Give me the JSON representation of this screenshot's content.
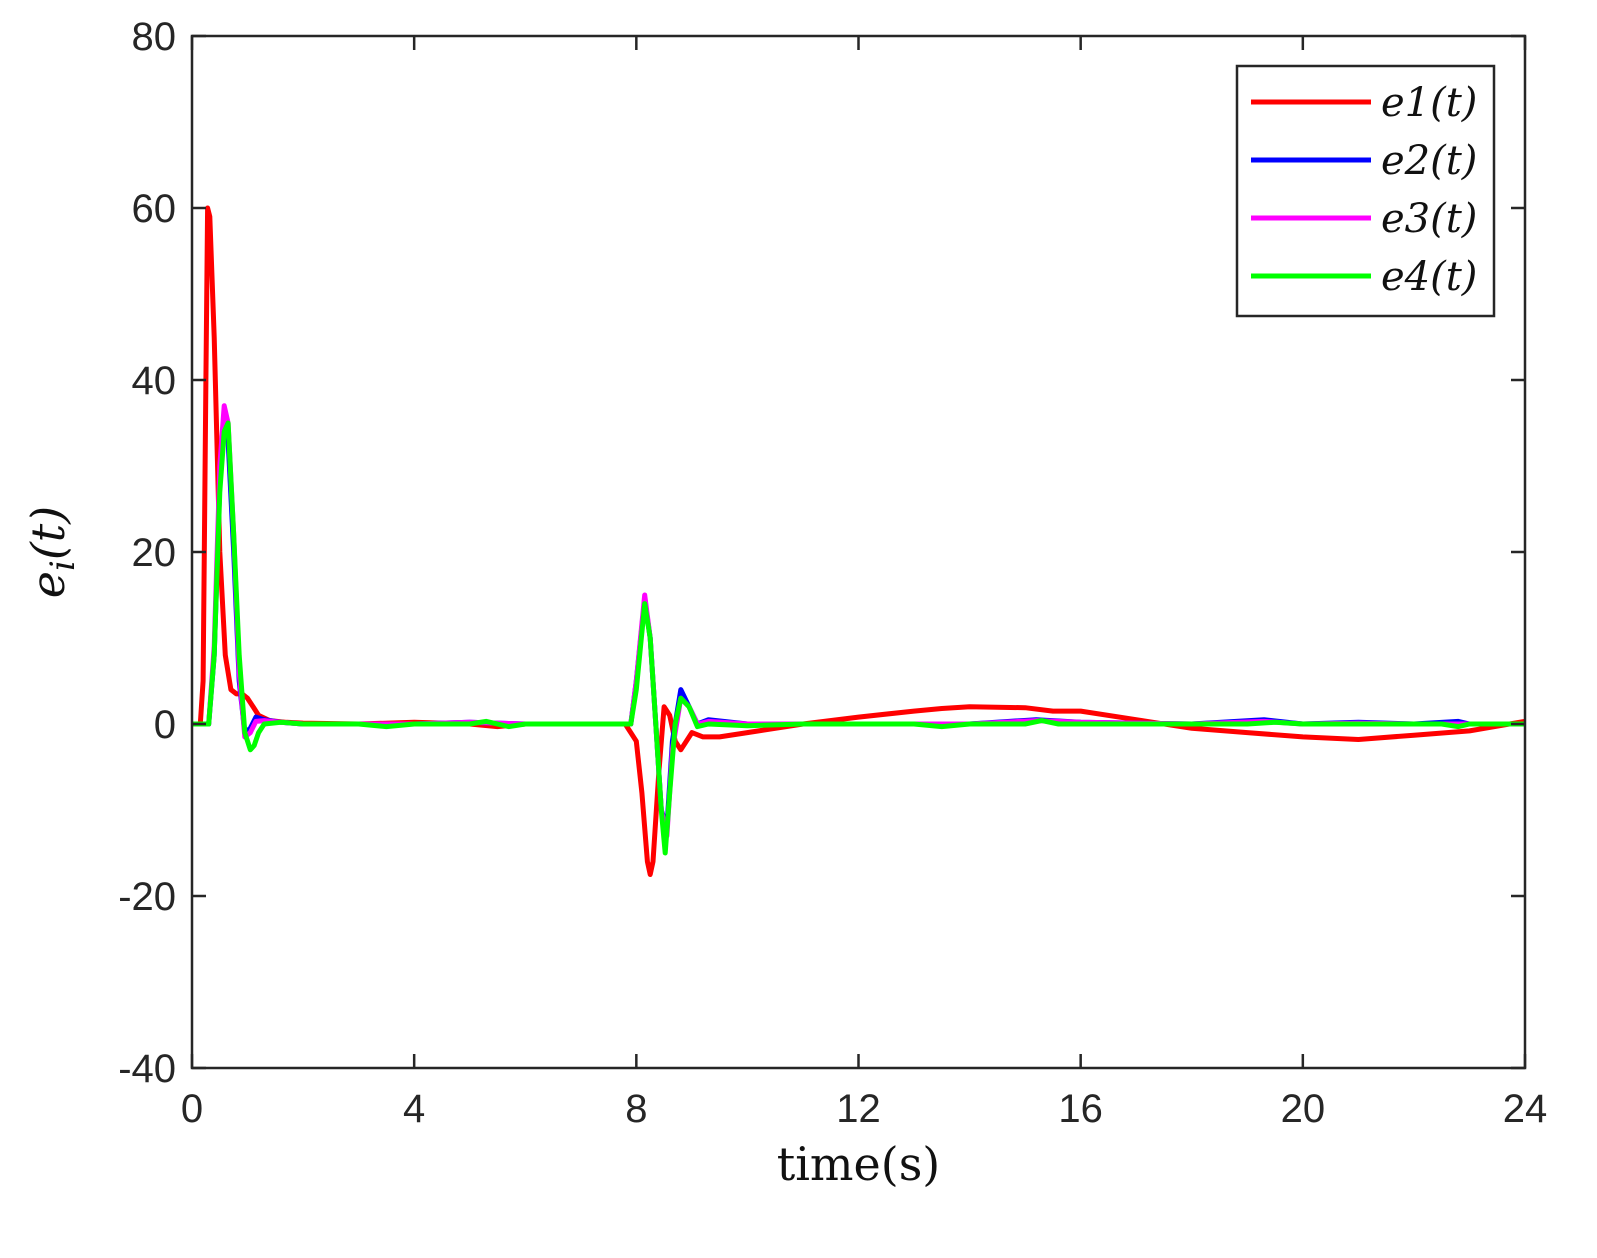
{
  "chart_data": {
    "type": "line",
    "xlabel": "time(s)",
    "ylabel": "e_i(t)",
    "ylabel_parts": {
      "base": "e",
      "sub": "i",
      "arg": "(t)"
    },
    "xlim": [
      0,
      24
    ],
    "ylim": [
      -40,
      80
    ],
    "xticks": [
      0,
      4,
      8,
      12,
      16,
      20,
      24
    ],
    "yticks": [
      -40,
      -20,
      0,
      20,
      40,
      60,
      80
    ],
    "xtick_labels": [
      "0",
      "4",
      "8",
      "12",
      "16",
      "20",
      "24"
    ],
    "ytick_labels": [
      "-40",
      "-20",
      "0",
      "20",
      "40",
      "60",
      "80"
    ],
    "grid": false,
    "legend_position": "top-right",
    "series": [
      {
        "name": "e1(t)",
        "color": "#ff0000",
        "points": [
          [
            0,
            0
          ],
          [
            0.15,
            0
          ],
          [
            0.2,
            5
          ],
          [
            0.25,
            40
          ],
          [
            0.28,
            60
          ],
          [
            0.32,
            59
          ],
          [
            0.4,
            45
          ],
          [
            0.5,
            20
          ],
          [
            0.6,
            8
          ],
          [
            0.7,
            4
          ],
          [
            0.8,
            3.5
          ],
          [
            0.9,
            3.5
          ],
          [
            1.0,
            3
          ],
          [
            1.1,
            2
          ],
          [
            1.2,
            1
          ],
          [
            1.4,
            0.4
          ],
          [
            1.7,
            0.2
          ],
          [
            2.0,
            0.1
          ],
          [
            3.0,
            0
          ],
          [
            4.0,
            0.2
          ],
          [
            5.0,
            0
          ],
          [
            5.5,
            -0.3
          ],
          [
            6,
            0
          ],
          [
            7,
            0
          ],
          [
            7.8,
            0
          ],
          [
            8.0,
            -2
          ],
          [
            8.1,
            -8
          ],
          [
            8.2,
            -16
          ],
          [
            8.25,
            -17.5
          ],
          [
            8.3,
            -16
          ],
          [
            8.4,
            -6
          ],
          [
            8.5,
            2
          ],
          [
            8.6,
            1
          ],
          [
            8.7,
            -2
          ],
          [
            8.8,
            -3
          ],
          [
            9.0,
            -1
          ],
          [
            9.2,
            -1.5
          ],
          [
            9.5,
            -1.5
          ],
          [
            10,
            -1
          ],
          [
            11,
            0
          ],
          [
            12,
            0.8
          ],
          [
            13,
            1.5
          ],
          [
            13.5,
            1.8
          ],
          [
            14,
            2
          ],
          [
            15,
            1.9
          ],
          [
            15.5,
            1.5
          ],
          [
            16,
            1.5
          ],
          [
            17,
            0.5
          ],
          [
            18,
            -0.5
          ],
          [
            19,
            -1
          ],
          [
            20,
            -1.5
          ],
          [
            21,
            -1.8
          ],
          [
            22,
            -1.3
          ],
          [
            23,
            -0.8
          ],
          [
            24,
            0.3
          ]
        ]
      },
      {
        "name": "e2(t)",
        "color": "#0000ff",
        "points": [
          [
            0,
            0
          ],
          [
            0.3,
            0
          ],
          [
            0.4,
            8
          ],
          [
            0.5,
            28
          ],
          [
            0.58,
            35
          ],
          [
            0.65,
            33
          ],
          [
            0.75,
            20
          ],
          [
            0.85,
            5
          ],
          [
            0.95,
            -1
          ],
          [
            1.05,
            -0.5
          ],
          [
            1.15,
            0.8
          ],
          [
            1.3,
            0.5
          ],
          [
            1.6,
            0.2
          ],
          [
            2,
            0
          ],
          [
            4,
            0
          ],
          [
            5,
            0.2
          ],
          [
            6,
            0
          ],
          [
            7,
            0
          ],
          [
            7.9,
            0
          ],
          [
            8.0,
            5
          ],
          [
            8.15,
            14.5
          ],
          [
            8.25,
            10
          ],
          [
            8.35,
            0
          ],
          [
            8.45,
            -10
          ],
          [
            8.55,
            -12
          ],
          [
            8.65,
            -2
          ],
          [
            8.8,
            4
          ],
          [
            8.95,
            2
          ],
          [
            9.1,
            0
          ],
          [
            9.3,
            0.5
          ],
          [
            10,
            0
          ],
          [
            12,
            0
          ],
          [
            14,
            0
          ],
          [
            15.2,
            0.5
          ],
          [
            16,
            0.2
          ],
          [
            18,
            0
          ],
          [
            19.3,
            0.5
          ],
          [
            20,
            0
          ],
          [
            21,
            0.2
          ],
          [
            22,
            0
          ],
          [
            22.8,
            0.3
          ],
          [
            23,
            0
          ],
          [
            24,
            0
          ]
        ]
      },
      {
        "name": "e3(t)",
        "color": "#ff00ff",
        "points": [
          [
            0,
            0
          ],
          [
            0.3,
            0
          ],
          [
            0.4,
            9
          ],
          [
            0.5,
            30
          ],
          [
            0.58,
            37
          ],
          [
            0.65,
            35
          ],
          [
            0.75,
            22
          ],
          [
            0.85,
            6
          ],
          [
            0.95,
            -1.5
          ],
          [
            1.05,
            -1
          ],
          [
            1.15,
            0.3
          ],
          [
            1.3,
            0.4
          ],
          [
            1.6,
            0.2
          ],
          [
            2,
            0
          ],
          [
            4,
            0
          ],
          [
            5,
            0.2
          ],
          [
            6,
            0
          ],
          [
            7,
            0
          ],
          [
            7.9,
            0
          ],
          [
            8.0,
            5
          ],
          [
            8.15,
            15
          ],
          [
            8.25,
            10
          ],
          [
            8.35,
            0
          ],
          [
            8.45,
            -10
          ],
          [
            8.55,
            -13
          ],
          [
            8.65,
            -3
          ],
          [
            8.8,
            3
          ],
          [
            8.95,
            2
          ],
          [
            9.1,
            0
          ],
          [
            9.3,
            0.3
          ],
          [
            10,
            0
          ],
          [
            12,
            0
          ],
          [
            14,
            0
          ],
          [
            15.2,
            0.4
          ],
          [
            16,
            0.2
          ],
          [
            18,
            0
          ],
          [
            19.3,
            0.3
          ],
          [
            20,
            0
          ],
          [
            21,
            0.1
          ],
          [
            22,
            0
          ],
          [
            24,
            0
          ]
        ]
      },
      {
        "name": "e4(t)",
        "color": "#00ff00",
        "points": [
          [
            0,
            0
          ],
          [
            0.3,
            0
          ],
          [
            0.4,
            8
          ],
          [
            0.5,
            27
          ],
          [
            0.58,
            34
          ],
          [
            0.65,
            35
          ],
          [
            0.75,
            22
          ],
          [
            0.85,
            8
          ],
          [
            0.95,
            -1
          ],
          [
            1.05,
            -3
          ],
          [
            1.12,
            -2.5
          ],
          [
            1.2,
            -1
          ],
          [
            1.3,
            0
          ],
          [
            1.6,
            0.2
          ],
          [
            2,
            0
          ],
          [
            3,
            0
          ],
          [
            3.5,
            -0.3
          ],
          [
            4,
            0
          ],
          [
            5,
            0
          ],
          [
            5.3,
            0.3
          ],
          [
            5.7,
            -0.3
          ],
          [
            6,
            0
          ],
          [
            7,
            0
          ],
          [
            7.9,
            0
          ],
          [
            8.0,
            4
          ],
          [
            8.15,
            14
          ],
          [
            8.25,
            10
          ],
          [
            8.35,
            0
          ],
          [
            8.45,
            -10
          ],
          [
            8.52,
            -15
          ],
          [
            8.6,
            -8
          ],
          [
            8.7,
            0
          ],
          [
            8.8,
            3
          ],
          [
            8.95,
            2
          ],
          [
            9.1,
            -0.3
          ],
          [
            9.3,
            0
          ],
          [
            10,
            -0.2
          ],
          [
            11,
            0
          ],
          [
            12,
            0
          ],
          [
            13,
            0
          ],
          [
            13.5,
            -0.3
          ],
          [
            14,
            0
          ],
          [
            15,
            0
          ],
          [
            15.3,
            0.4
          ],
          [
            15.6,
            0
          ],
          [
            16,
            0
          ],
          [
            17,
            0
          ],
          [
            18,
            0
          ],
          [
            19,
            0
          ],
          [
            19.5,
            0.2
          ],
          [
            20,
            0
          ],
          [
            21,
            0
          ],
          [
            22,
            0
          ],
          [
            22.5,
            0
          ],
          [
            22.8,
            -0.3
          ],
          [
            23,
            0
          ],
          [
            24,
            0
          ]
        ]
      }
    ]
  }
}
